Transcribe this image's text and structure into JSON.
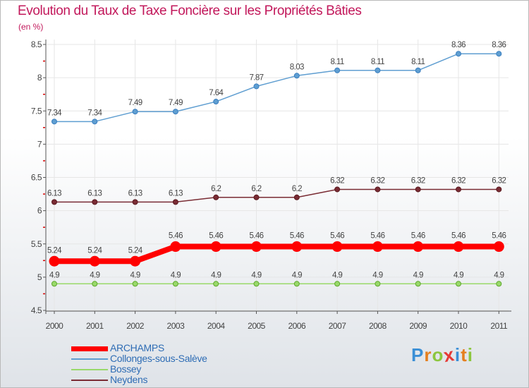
{
  "chart_data": {
    "type": "line",
    "title": "Evolution du Taux de Taxe Foncière sur les Propriétés Bâties",
    "subtitle": "(en %)",
    "x": [
      "2000",
      "2001",
      "2002",
      "2003",
      "2004",
      "2005",
      "2006",
      "2007",
      "2008",
      "2009",
      "2010",
      "2011"
    ],
    "ylim": [
      4.5,
      8.5
    ],
    "yticks": [
      "4.5",
      "5",
      "5.5",
      "6",
      "6.5",
      "7",
      "7.5",
      "8",
      "8.5"
    ],
    "legend_position": "bottom-left",
    "series": [
      {
        "name": "ARCHAMPS",
        "color": "#ff0000",
        "values": [
          5.24,
          5.24,
          5.24,
          5.46,
          5.46,
          5.46,
          5.46,
          5.46,
          5.46,
          5.46,
          5.46,
          5.46
        ],
        "labels": [
          "5.24",
          "5.24",
          "5.24",
          "5.46",
          "5.46",
          "5.46",
          "5.46",
          "5.46",
          "5.46",
          "5.46",
          "5.46",
          "5.46"
        ]
      },
      {
        "name": "Collonges-sous-Salève",
        "color": "#5f9ed1",
        "values": [
          7.34,
          7.34,
          7.49,
          7.49,
          7.64,
          7.87,
          8.03,
          8.11,
          8.11,
          8.11,
          8.36,
          8.36
        ],
        "labels": [
          "7.34",
          "7.34",
          "7.49",
          "7.49",
          "7.64",
          "7.87",
          "8.03",
          "8.11",
          "8.11",
          "8.11",
          "8.36",
          "8.36"
        ]
      },
      {
        "name": "Bossey",
        "color": "#99d96a",
        "values": [
          4.9,
          4.9,
          4.9,
          4.9,
          4.9,
          4.9,
          4.9,
          4.9,
          4.9,
          4.9,
          4.9,
          4.9
        ],
        "labels": [
          "4.9",
          "4.9",
          "4.9",
          "4.9",
          "4.9",
          "4.9",
          "4.9",
          "4.9",
          "4.9",
          "4.9",
          "4.9",
          "4.9"
        ]
      },
      {
        "name": "Neydens",
        "color": "#7a2c34",
        "values": [
          6.13,
          6.13,
          6.13,
          6.13,
          6.2,
          6.2,
          6.2,
          6.32,
          6.32,
          6.32,
          6.32,
          6.32
        ],
        "labels": [
          "6.13",
          "6.13",
          "6.13",
          "6.13",
          "6.2",
          "6.2",
          "6.2",
          "6.32",
          "6.32",
          "6.32",
          "6.32",
          "6.32"
        ]
      }
    ]
  },
  "legend": {
    "items": [
      "ARCHAMPS",
      "Collonges-sous-Salève",
      "Bossey",
      "Neydens"
    ]
  },
  "brand": {
    "letters": [
      "P",
      "r",
      "o",
      "x",
      "i",
      "t",
      "i"
    ],
    "colors": [
      "#3b8fd6",
      "#e57f1f",
      "#8cc63e",
      "#e53935",
      "#3b8fd6",
      "#e57f1f",
      "#8cc63e"
    ]
  }
}
